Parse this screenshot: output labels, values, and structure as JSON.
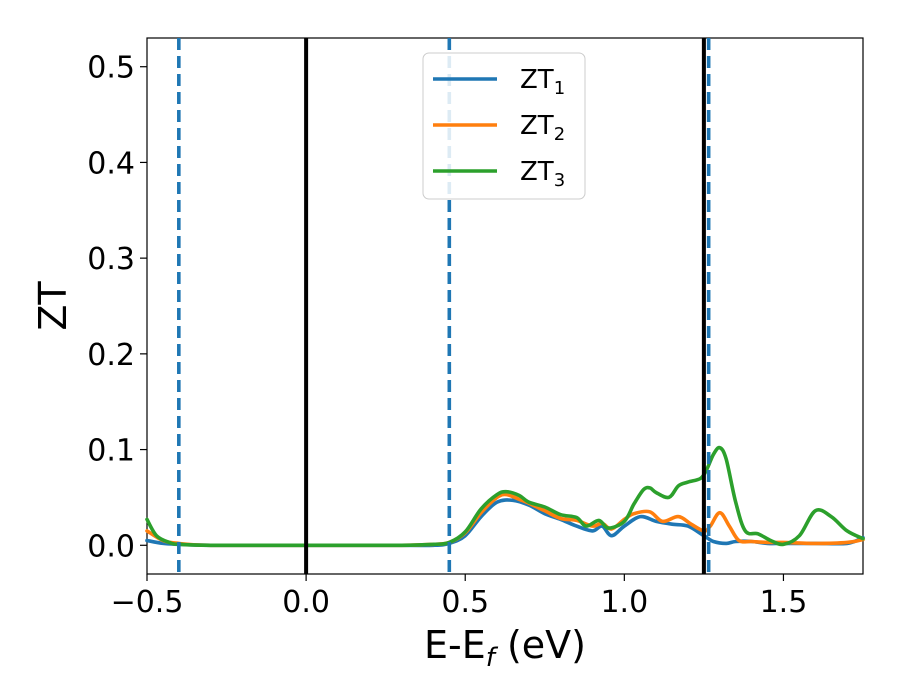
{
  "chart_data": {
    "type": "line",
    "xlabel": "E-E",
    "xlabel_subscript": "f",
    "xlabel_suffix": " (eV)",
    "ylabel": "ZT",
    "xlim": [
      -0.5,
      1.75
    ],
    "ylim": [
      -0.03,
      0.53
    ],
    "xticks": [
      -0.5,
      0.0,
      0.5,
      1.0,
      1.5
    ],
    "xtick_labels": [
      "−0.5",
      "0.0",
      "0.5",
      "1.0",
      "1.5"
    ],
    "yticks": [
      0.0,
      0.1,
      0.2,
      0.3,
      0.4,
      0.5
    ],
    "ytick_labels": [
      "0.0",
      "0.1",
      "0.2",
      "0.3",
      "0.4",
      "0.5"
    ],
    "grid": false,
    "legend_position": "upper-center",
    "vlines": [
      {
        "x": -0.4,
        "style": "dashed",
        "color": "#1f77b4"
      },
      {
        "x": 0.0,
        "style": "solid",
        "color": "#000000"
      },
      {
        "x": 0.45,
        "style": "dashed",
        "color": "#1f77b4"
      },
      {
        "x": 1.25,
        "style": "solid",
        "color": "#000000"
      },
      {
        "x": 1.265,
        "style": "dashed",
        "color": "#1f77b4"
      }
    ],
    "series": [
      {
        "name": "ZT",
        "subscript": "1",
        "color": "#1f77b4",
        "x": [
          -0.5,
          -0.45,
          -0.4,
          -0.3,
          0.0,
          0.3,
          0.4,
          0.45,
          0.5,
          0.55,
          0.6,
          0.65,
          0.7,
          0.75,
          0.8,
          0.85,
          0.9,
          0.93,
          0.96,
          1.0,
          1.05,
          1.1,
          1.15,
          1.2,
          1.25,
          1.28,
          1.32,
          1.35,
          1.4,
          1.45,
          1.5,
          1.6,
          1.7,
          1.75
        ],
        "y": [
          0.005,
          0.002,
          0.001,
          0.0,
          0.0,
          0.0,
          0.0,
          0.002,
          0.01,
          0.03,
          0.045,
          0.047,
          0.042,
          0.033,
          0.027,
          0.02,
          0.015,
          0.02,
          0.01,
          0.02,
          0.03,
          0.025,
          0.022,
          0.02,
          0.01,
          0.004,
          0.002,
          0.004,
          0.004,
          0.002,
          0.002,
          0.002,
          0.002,
          0.008
        ]
      },
      {
        "name": "ZT",
        "subscript": "2",
        "color": "#ff7f0e",
        "x": [
          -0.5,
          -0.45,
          -0.4,
          -0.3,
          0.0,
          0.3,
          0.4,
          0.45,
          0.5,
          0.55,
          0.6,
          0.63,
          0.67,
          0.7,
          0.75,
          0.8,
          0.85,
          0.9,
          0.93,
          0.96,
          1.0,
          1.03,
          1.08,
          1.12,
          1.17,
          1.21,
          1.25,
          1.27,
          1.3,
          1.33,
          1.36,
          1.4,
          1.45,
          1.5,
          1.6,
          1.7,
          1.75
        ],
        "y": [
          0.015,
          0.005,
          0.002,
          0.0,
          0.0,
          0.0,
          0.001,
          0.003,
          0.013,
          0.034,
          0.05,
          0.053,
          0.048,
          0.044,
          0.036,
          0.028,
          0.026,
          0.02,
          0.023,
          0.017,
          0.027,
          0.033,
          0.035,
          0.025,
          0.03,
          0.022,
          0.015,
          0.02,
          0.034,
          0.02,
          0.005,
          0.004,
          0.003,
          0.003,
          0.002,
          0.003,
          0.006
        ]
      },
      {
        "name": "ZT",
        "subscript": "3",
        "color": "#2ca02c",
        "x": [
          -0.5,
          -0.47,
          -0.43,
          -0.4,
          -0.3,
          0.0,
          0.3,
          0.4,
          0.45,
          0.5,
          0.55,
          0.6,
          0.63,
          0.67,
          0.7,
          0.75,
          0.8,
          0.85,
          0.88,
          0.92,
          0.95,
          1.0,
          1.03,
          1.06,
          1.08,
          1.1,
          1.14,
          1.17,
          1.2,
          1.24,
          1.26,
          1.28,
          1.3,
          1.32,
          1.35,
          1.38,
          1.42,
          1.46,
          1.5,
          1.55,
          1.6,
          1.65,
          1.7,
          1.75
        ],
        "y": [
          0.027,
          0.01,
          0.003,
          0.001,
          0.0,
          0.0,
          0.0,
          0.001,
          0.003,
          0.014,
          0.038,
          0.053,
          0.056,
          0.052,
          0.045,
          0.04,
          0.032,
          0.029,
          0.02,
          0.026,
          0.018,
          0.025,
          0.043,
          0.058,
          0.06,
          0.055,
          0.05,
          0.062,
          0.066,
          0.07,
          0.08,
          0.095,
          0.102,
          0.09,
          0.045,
          0.015,
          0.012,
          0.005,
          0.001,
          0.01,
          0.036,
          0.03,
          0.015,
          0.007
        ]
      }
    ]
  }
}
